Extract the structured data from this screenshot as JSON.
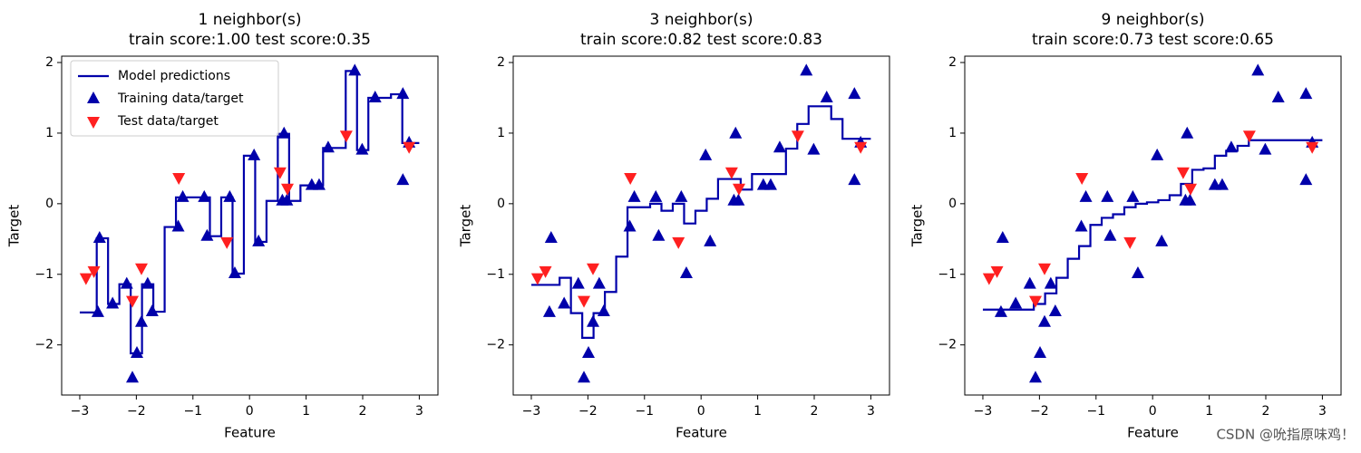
{
  "chart_data": [
    {
      "type": "line",
      "title": "1 neighbor(s)",
      "subtitle": "train score:1.00 test score:0.35",
      "xlabel": "Feature",
      "ylabel": "Target",
      "xlim": [
        -3.32,
        3.33
      ],
      "ylim": [
        -2.71,
        2.09
      ],
      "xticks": [
        {
          "value": -3,
          "label": "−3"
        },
        {
          "value": -2,
          "label": "−2"
        },
        {
          "value": -1,
          "label": "−1"
        },
        0,
        1,
        2,
        3
      ],
      "yticks": [
        {
          "value": -2,
          "label": "−2"
        },
        {
          "value": -1,
          "label": "−1"
        },
        0,
        1,
        2
      ],
      "legend": "upper left",
      "series": [
        {
          "name": "Model predictions",
          "type": "line",
          "drawstyle": "steps-mid",
          "color": "#0000aa",
          "x": [
            -3,
            -2.8,
            -2.6,
            -2.4,
            -2.2,
            -2,
            -1.8,
            -1.6,
            -1.4,
            -1.2,
            -1,
            -0.8,
            -0.6,
            -0.4,
            -0.2,
            0,
            0.2,
            0.4,
            0.6,
            0.8,
            1,
            1.2,
            1.4,
            1.6,
            1.8,
            2,
            2.2,
            2.4,
            2.6,
            2.8,
            3
          ],
          "values": [
            -1.54,
            -1.54,
            -0.49,
            -1.42,
            -1.14,
            -2.12,
            -1.14,
            -1.53,
            -0.33,
            0.09,
            0.09,
            0.09,
            -0.46,
            0.09,
            -0.99,
            0.68,
            -0.54,
            0.04,
            0.99,
            0.04,
            0.26,
            0.26,
            0.79,
            0.79,
            1.88,
            0.76,
            1.5,
            1.5,
            1.55,
            0.86,
            0.86
          ]
        },
        {
          "name": "Training data/target",
          "type": "scatter",
          "marker": "^",
          "color": "#0000aa",
          "x": [
            -2.68,
            -2.65,
            -2.42,
            -2.17,
            -2.07,
            -1.99,
            -1.91,
            -1.8,
            -1.72,
            -1.26,
            -1.18,
            -0.8,
            -0.75,
            -0.35,
            -0.26,
            0.08,
            0.16,
            0.58,
            0.61,
            0.66,
            1.1,
            1.23,
            1.39,
            1.86,
            1.99,
            2.22,
            2.71,
            2.71,
            2.82
          ],
          "values": [
            -1.54,
            -0.49,
            -1.42,
            -1.14,
            -2.47,
            -2.12,
            -1.68,
            -1.14,
            -1.53,
            -0.33,
            0.09,
            0.09,
            -0.46,
            0.09,
            -0.99,
            0.68,
            -0.54,
            0.04,
            0.99,
            0.04,
            0.26,
            0.26,
            0.79,
            1.88,
            0.76,
            1.5,
            1.55,
            0.33,
            0.86
          ]
        },
        {
          "name": "Test data/target",
          "type": "scatter",
          "marker": "v",
          "color": "#ff2020",
          "x": [
            -2.89,
            -2.75,
            -2.07,
            -1.91,
            -1.25,
            -0.4,
            0.54,
            0.67,
            1.71,
            2.82
          ],
          "values": [
            -1.05,
            -0.95,
            -1.37,
            -0.91,
            0.37,
            -0.54,
            0.45,
            0.22,
            0.97,
            0.81
          ]
        }
      ]
    },
    {
      "type": "line",
      "title": "3 neighbor(s)",
      "subtitle": "train score:0.82 test score:0.83",
      "xlabel": "Feature",
      "ylabel": "Target",
      "xlim": [
        -3.32,
        3.33
      ],
      "ylim": [
        -2.71,
        2.09
      ],
      "xticks": [
        {
          "value": -3,
          "label": "−3"
        },
        {
          "value": -2,
          "label": "−2"
        },
        {
          "value": -1,
          "label": "−1"
        },
        0,
        1,
        2,
        3
      ],
      "yticks": [
        {
          "value": -2,
          "label": "−2"
        },
        {
          "value": -1,
          "label": "−1"
        },
        0,
        1,
        2
      ],
      "series": [
        {
          "name": "Model predictions",
          "type": "line",
          "drawstyle": "steps-mid",
          "color": "#0000aa",
          "x": [
            -3,
            -2.8,
            -2.6,
            -2.4,
            -2.2,
            -2,
            -1.8,
            -1.6,
            -1.4,
            -1.2,
            -1,
            -0.8,
            -0.6,
            -0.4,
            -0.2,
            0,
            0.2,
            0.4,
            0.6,
            0.8,
            1,
            1.2,
            1.4,
            1.6,
            1.8,
            2,
            2.2,
            2.4,
            2.6,
            2.8,
            3
          ],
          "values": [
            -1.15,
            -1.15,
            -1.15,
            -1.05,
            -1.55,
            -1.9,
            -1.55,
            -1.25,
            -0.75,
            -0.05,
            -0.05,
            0,
            -0.1,
            0,
            -0.28,
            -0.1,
            0.07,
            0.35,
            0.35,
            0.2,
            0.42,
            0.42,
            0.42,
            0.78,
            1.13,
            1.38,
            1.38,
            1.2,
            0.92,
            0.92,
            0.92
          ]
        },
        {
          "name": "Training data/target",
          "type": "scatter",
          "marker": "^",
          "color": "#0000aa",
          "x": [
            -2.68,
            -2.65,
            -2.42,
            -2.17,
            -2.07,
            -1.99,
            -1.91,
            -1.8,
            -1.72,
            -1.26,
            -1.18,
            -0.8,
            -0.75,
            -0.35,
            -0.26,
            0.08,
            0.16,
            0.58,
            0.61,
            0.66,
            1.1,
            1.23,
            1.39,
            1.86,
            1.99,
            2.22,
            2.71,
            2.71,
            2.82
          ],
          "values": [
            -1.54,
            -0.49,
            -1.42,
            -1.14,
            -2.47,
            -2.12,
            -1.68,
            -1.14,
            -1.53,
            -0.33,
            0.09,
            0.09,
            -0.46,
            0.09,
            -0.99,
            0.68,
            -0.54,
            0.04,
            0.99,
            0.04,
            0.26,
            0.26,
            0.79,
            1.88,
            0.76,
            1.5,
            1.55,
            0.33,
            0.86
          ]
        },
        {
          "name": "Test data/target",
          "type": "scatter",
          "marker": "v",
          "color": "#ff2020",
          "x": [
            -2.89,
            -2.75,
            -2.07,
            -1.91,
            -1.25,
            -0.4,
            0.54,
            0.67,
            1.71,
            2.82
          ],
          "values": [
            -1.05,
            -0.95,
            -1.37,
            -0.91,
            0.37,
            -0.54,
            0.45,
            0.22,
            0.97,
            0.81
          ]
        }
      ]
    },
    {
      "type": "line",
      "title": "9 neighbor(s)",
      "subtitle": "train score:0.73 test score:0.65",
      "xlabel": "Feature",
      "ylabel": "Target",
      "xlim": [
        -3.32,
        3.33
      ],
      "ylim": [
        -2.71,
        2.09
      ],
      "xticks": [
        {
          "value": -3,
          "label": "−3"
        },
        {
          "value": -2,
          "label": "−2"
        },
        {
          "value": -1,
          "label": "−1"
        },
        0,
        1,
        2,
        3
      ],
      "yticks": [
        {
          "value": -2,
          "label": "−2"
        },
        {
          "value": -1,
          "label": "−1"
        },
        0,
        1,
        2
      ],
      "watermark": "CSDN @吮指原味鸡！",
      "series": [
        {
          "name": "Model predictions",
          "type": "line",
          "drawstyle": "steps-mid",
          "color": "#0000aa",
          "x": [
            -3,
            -2.8,
            -2.6,
            -2.4,
            -2.2,
            -2,
            -1.8,
            -1.6,
            -1.4,
            -1.2,
            -1,
            -0.8,
            -0.6,
            -0.4,
            -0.2,
            0,
            0.2,
            0.4,
            0.6,
            0.8,
            1,
            1.2,
            1.4,
            1.6,
            1.8,
            2,
            2.2,
            2.4,
            2.6,
            2.8,
            3
          ],
          "values": [
            -1.5,
            -1.5,
            -1.5,
            -1.5,
            -1.5,
            -1.42,
            -1.27,
            -1.05,
            -0.78,
            -0.6,
            -0.3,
            -0.2,
            -0.15,
            -0.05,
            0,
            0.02,
            0.05,
            0.12,
            0.28,
            0.48,
            0.5,
            0.68,
            0.75,
            0.82,
            0.9,
            0.9,
            0.9,
            0.9,
            0.9,
            0.9,
            0.9
          ]
        },
        {
          "name": "Training data/target",
          "type": "scatter",
          "marker": "^",
          "color": "#0000aa",
          "x": [
            -2.68,
            -2.65,
            -2.42,
            -2.17,
            -2.07,
            -1.99,
            -1.91,
            -1.8,
            -1.72,
            -1.26,
            -1.18,
            -0.8,
            -0.75,
            -0.35,
            -0.26,
            0.08,
            0.16,
            0.58,
            0.61,
            0.66,
            1.1,
            1.23,
            1.39,
            1.86,
            1.99,
            2.22,
            2.71,
            2.71,
            2.82
          ],
          "values": [
            -1.54,
            -0.49,
            -1.42,
            -1.14,
            -2.47,
            -2.12,
            -1.68,
            -1.14,
            -1.53,
            -0.33,
            0.09,
            0.09,
            -0.46,
            0.09,
            -0.99,
            0.68,
            -0.54,
            0.04,
            0.99,
            0.04,
            0.26,
            0.26,
            0.79,
            1.88,
            0.76,
            1.5,
            1.55,
            0.33,
            0.86
          ]
        },
        {
          "name": "Test data/target",
          "type": "scatter",
          "marker": "v",
          "color": "#ff2020",
          "x": [
            -2.89,
            -2.75,
            -2.07,
            -1.91,
            -1.25,
            -0.4,
            0.54,
            0.67,
            1.71,
            2.82
          ],
          "values": [
            -1.05,
            -0.95,
            -1.37,
            -0.91,
            0.37,
            -0.54,
            0.45,
            0.22,
            0.97,
            0.81
          ]
        }
      ]
    }
  ]
}
